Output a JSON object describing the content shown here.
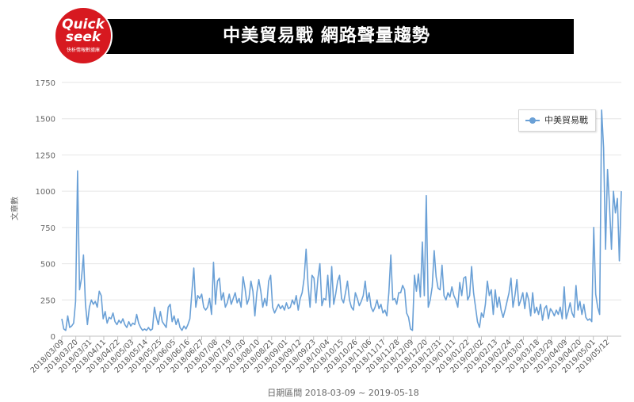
{
  "header": {
    "title": "中美貿易戰 網路聲量趨勢",
    "logo_line1": "Quick",
    "logo_line2": "seek",
    "logo_line3": "快析情報數據庫"
  },
  "chart_data": {
    "type": "line",
    "title": "",
    "xlabel": "日期區間 2018-03-09 ~ 2019-05-18",
    "ylabel": "文章數",
    "ylim": [
      0,
      1750
    ],
    "yticks": [
      0,
      250,
      500,
      750,
      1000,
      1250,
      1500,
      1750
    ],
    "grid": true,
    "legend": "top-right",
    "color": "#6aa0d6",
    "x_ticks": [
      "2018/03/09",
      "2018/03/20",
      "2018/03/31",
      "2018/04/11",
      "2018/04/22",
      "2018/05/03",
      "2018/05/14",
      "2018/05/25",
      "2018/06/05",
      "2018/06/16",
      "2018/06/27",
      "2018/07/08",
      "2018/07/19",
      "2018/07/30",
      "2018/08/10",
      "2018/08/21",
      "2018/09/01",
      "2018/09/12",
      "2018/09/23",
      "2018/10/04",
      "2018/10/15",
      "2018/10/26",
      "2018/11/06",
      "2018/11/17",
      "2018/11/28",
      "2018/12/09",
      "2018/12/20",
      "2018/12/31",
      "2019/01/11",
      "2019/01/22",
      "2019/02/02",
      "2019/02/13",
      "2019/02/24",
      "2019/03/07",
      "2019/03/18",
      "2019/03/29",
      "2019/04/09",
      "2019/04/20",
      "2019/05/01",
      "2019/05/12"
    ],
    "series": [
      {
        "name": "中美貿易戰",
        "values": [
          120,
          50,
          40,
          140,
          60,
          70,
          90,
          240,
          1140,
          320,
          400,
          560,
          220,
          80,
          200,
          250,
          220,
          240,
          200,
          310,
          280,
          120,
          170,
          90,
          130,
          120,
          160,
          100,
          80,
          110,
          90,
          120,
          80,
          60,
          100,
          70,
          90,
          80,
          150,
          90,
          60,
          40,
          50,
          40,
          60,
          40,
          50,
          200,
          130,
          80,
          170,
          100,
          80,
          60,
          200,
          220,
          100,
          140,
          80,
          120,
          60,
          40,
          70,
          50,
          80,
          120,
          300,
          470,
          200,
          280,
          260,
          290,
          200,
          180,
          200,
          260,
          150,
          510,
          220,
          380,
          400,
          250,
          300,
          200,
          230,
          290,
          220,
          260,
          300,
          230,
          260,
          200,
          410,
          330,
          220,
          260,
          380,
          310,
          140,
          300,
          390,
          310,
          200,
          260,
          210,
          380,
          420,
          200,
          160,
          190,
          220,
          190,
          210,
          180,
          230,
          190,
          200,
          250,
          220,
          280,
          180,
          260,
          300,
          400,
          600,
          350,
          200,
          420,
          400,
          230,
          400,
          500,
          210,
          260,
          250,
          420,
          200,
          480,
          220,
          290,
          380,
          420,
          260,
          230,
          300,
          380,
          250,
          200,
          180,
          300,
          260,
          210,
          240,
          280,
          380,
          240,
          300,
          200,
          170,
          200,
          250,
          190,
          220,
          160,
          180,
          140,
          300,
          560,
          250,
          260,
          220,
          300,
          300,
          350,
          320,
          160,
          130,
          50,
          40,
          420,
          310,
          430,
          270,
          650,
          280,
          970,
          200,
          250,
          340,
          590,
          410,
          330,
          320,
          490,
          280,
          250,
          300,
          270,
          340,
          280,
          250,
          200,
          370,
          280,
          400,
          410,
          250,
          280,
          480,
          300,
          200,
          100,
          60,
          160,
          130,
          220,
          380,
          280,
          320,
          150,
          320,
          200,
          270,
          180,
          130,
          180,
          240,
          300,
          400,
          200,
          280,
          390,
          210,
          250,
          300,
          190,
          300,
          250,
          140,
          300,
          160,
          200,
          150,
          220,
          110,
          190,
          210,
          120,
          190,
          170,
          140,
          180,
          150,
          200,
          120,
          340,
          120,
          170,
          230,
          160,
          130,
          350,
          180,
          240,
          150,
          220,
          130,
          110,
          120,
          100,
          750,
          290,
          200,
          150,
          1560,
          1300,
          600,
          1150,
          900,
          600,
          1000,
          850,
          950,
          520,
          1000
        ]
      }
    ]
  }
}
